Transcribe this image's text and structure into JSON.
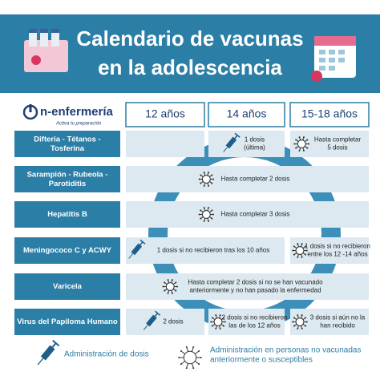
{
  "header": {
    "title_lines": [
      "Calendario de vacunas",
      "en la adolescencia"
    ]
  },
  "logo": {
    "name": "n-enfermería",
    "tagline": "Activa tu preparación"
  },
  "table": {
    "columns": [
      "12 años",
      "14 años",
      "15-18 años"
    ],
    "rows": [
      {
        "label": [
          "Difteria - Tétanos -",
          "Tosferina"
        ],
        "cells": [
          [
            "1 dosis",
            "(última)"
          ],
          [
            "Hasta completar",
            "5 dosis"
          ]
        ]
      },
      {
        "label": [
          "Sarampión - Rubeola -",
          "Parotiditis"
        ],
        "cells": [
          [
            "Hasta completar 2 dosis"
          ]
        ]
      },
      {
        "label": [
          "Hepatitis B"
        ],
        "cells": [
          [
            "Hasta completar 3 dosis"
          ]
        ]
      },
      {
        "label": [
          "Meningococo C y ACWY"
        ],
        "cells": [
          [
            "1 dosis si no recibieron tras los 10 años"
          ],
          [
            "1 dosis si no recibieron",
            "entre los 12 -14 años"
          ]
        ]
      },
      {
        "label": [
          "Varicela"
        ],
        "cells": [
          [
            "Hasta completar 2 dosis si no se han vacunado",
            "anteriormente y no han pasado la enfermedad"
          ]
        ]
      },
      {
        "label": [
          "Virus del Papiloma Humano"
        ],
        "cells": [
          [
            "2 dosis"
          ],
          [
            "2 dosis si no recibieron",
            "las de los 12 años"
          ],
          [
            "3 dosis si aún no la",
            "han recibido"
          ]
        ]
      }
    ]
  },
  "legend": {
    "dose": "Administración de dosis",
    "unvaccinated": [
      "Administración en personas no vacunadas",
      "anteriormente o susceptibles"
    ]
  }
}
